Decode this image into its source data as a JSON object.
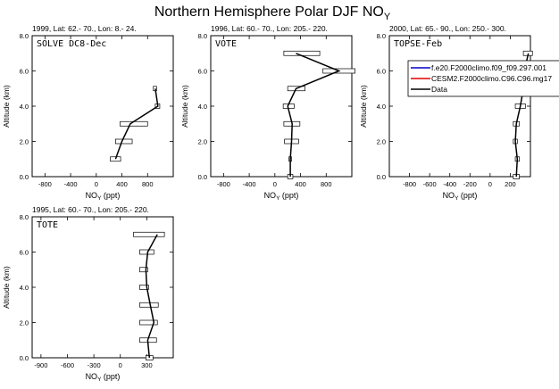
{
  "page_title": "Northern Hemisphere Polar DJF NO",
  "page_title_sub": "Y",
  "legend": [
    {
      "label": "f.e20.F2000climo.f09_f09.297.001",
      "color": "#0000c8"
    },
    {
      "label": "CESM2.F2000climo.C96.C96.mg17",
      "color": "#e00000"
    },
    {
      "label": "Data",
      "color": "#000000"
    }
  ],
  "chart_data": [
    {
      "type": "line",
      "header": "1999, Lat: 62.- 70., Lon: 8.- 24.",
      "campaign": "SOLVE DC8-Dec",
      "xlabel": "NO",
      "xlabel_sub": "Y",
      "xlabel_unit": " (ppt)",
      "ylabel": "Altitude (km)",
      "xlim": [
        -1000,
        1200
      ],
      "ylim": [
        0,
        8
      ],
      "xticks": [
        "-800",
        "-400",
        "0",
        "400",
        "800"
      ],
      "xtick_values": [
        -800,
        -400,
        0,
        400,
        800
      ],
      "yticks": [
        "0.0",
        "2.0",
        "4.0",
        "6.0",
        "8.0"
      ],
      "ytick_values": [
        0,
        2,
        4,
        6,
        8
      ],
      "series": [
        {
          "name": "Data",
          "y": [
            1,
            2,
            3,
            4,
            5
          ],
          "x": [
            300,
            400,
            530,
            960,
            920
          ]
        }
      ],
      "ranges": [
        [
          220,
          380
        ],
        [
          300,
          560
        ],
        [
          370,
          800
        ],
        [
          920,
          990
        ],
        [
          890,
          940
        ]
      ]
    },
    {
      "type": "line",
      "header": "1996, Lat: 60.- 70., Lon: 205.- 220.",
      "campaign": "VOTE",
      "xlabel": "NO",
      "xlabel_sub": "Y",
      "xlabel_unit": " (ppt)",
      "ylabel": "Altitude (km)",
      "xlim": [
        -1000,
        1200
      ],
      "ylim": [
        0,
        8
      ],
      "xticks": [
        "-800",
        "-400",
        "0",
        "400",
        "800"
      ],
      "xtick_values": [
        -800,
        -400,
        0,
        400,
        800
      ],
      "yticks": [
        "0.0",
        "2.0",
        "4.0",
        "6.0",
        "8.0"
      ],
      "ytick_values": [
        0,
        2,
        4,
        6,
        8
      ],
      "series": [
        {
          "name": "Data",
          "y": [
            0,
            1,
            2,
            3,
            4,
            5,
            6,
            7
          ],
          "x": [
            240,
            240,
            260,
            270,
            200,
            330,
            1000,
            330
          ]
        }
      ],
      "ranges": [
        [
          200,
          280
        ],
        [
          220,
          260
        ],
        [
          150,
          370
        ],
        [
          140,
          390
        ],
        [
          130,
          300
        ],
        [
          200,
          470
        ],
        [
          750,
          1250
        ],
        [
          140,
          700
        ]
      ]
    },
    {
      "type": "line",
      "header": "2000, Lat: 65.- 90., Lon: 250.- 300.",
      "campaign": "TOPSE-Feb",
      "xlabel": "NO",
      "xlabel_sub": "Y",
      "xlabel_unit": " (ppt)",
      "ylabel": "Altitude (km)",
      "xlim": [
        -1000,
        400
      ],
      "ylim": [
        0,
        8
      ],
      "xticks": [
        "-800",
        "-600",
        "-400",
        "-200",
        "0",
        "200"
      ],
      "xtick_values": [
        -800,
        -600,
        -400,
        -200,
        0,
        200
      ],
      "yticks": [
        "0.0",
        "2.0",
        "4.0",
        "6.0",
        "8.0"
      ],
      "ytick_values": [
        0,
        2,
        4,
        6,
        8
      ],
      "series": [
        {
          "name": "Data",
          "y": [
            0,
            1,
            2,
            3,
            4,
            5,
            6,
            7
          ],
          "x": [
            260,
            270,
            250,
            260,
            300,
            330,
            340,
            380
          ]
        }
      ],
      "ranges": [
        [
          230,
          290
        ],
        [
          250,
          290
        ],
        [
          230,
          270
        ],
        [
          230,
          290
        ],
        [
          250,
          350
        ],
        [
          260,
          400
        ],
        [
          300,
          380
        ],
        [
          330,
          420
        ]
      ]
    },
    {
      "type": "line",
      "header": "1995, Lat: 60.- 70., Lon: 205.- 220.",
      "campaign": "TOTE",
      "xlabel": "NO",
      "xlabel_sub": "Y",
      "xlabel_unit": " (ppt)",
      "ylabel": "Altitude (km)",
      "xlim": [
        -1000,
        600
      ],
      "ylim": [
        0,
        8
      ],
      "xticks": [
        "-900",
        "-600",
        "-300",
        "0",
        "300"
      ],
      "xtick_values": [
        -900,
        -600,
        -300,
        0,
        300
      ],
      "yticks": [
        "0.0",
        "2.0",
        "4.0",
        "6.0",
        "8.0"
      ],
      "ytick_values": [
        0,
        2,
        4,
        6,
        8
      ],
      "series": [
        {
          "name": "Data",
          "y": [
            0,
            1,
            2,
            3,
            4,
            5,
            6,
            7
          ],
          "x": [
            330,
            310,
            380,
            340,
            300,
            290,
            310,
            420
          ]
        }
      ],
      "ranges": [
        [
          290,
          370
        ],
        [
          220,
          410
        ],
        [
          220,
          420
        ],
        [
          220,
          430
        ],
        [
          220,
          320
        ],
        [
          220,
          310
        ],
        [
          220,
          380
        ],
        [
          150,
          500
        ]
      ]
    }
  ]
}
